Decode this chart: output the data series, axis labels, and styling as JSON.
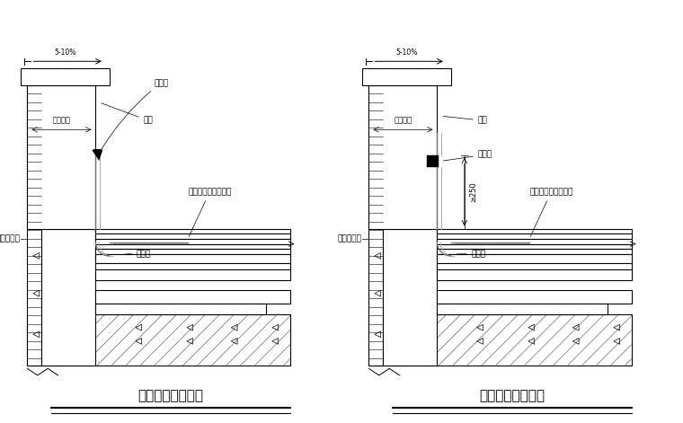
{
  "bg_color": "#ffffff",
  "line_color": "#000000",
  "title1": "女儿墙泛水（一）",
  "title2": "女儿墙泛水（二）",
  "label_slope": "5-10%",
  "label_sealant1": "密封膏",
  "label_sealant2": "密封膏",
  "label_flashing1": "鹰嘴",
  "label_flashing2": "鹰嘴",
  "label_wall_thick1": "女儿墙厚",
  "label_wall_thick2": "女儿墙厚",
  "label_outer_wall1": "外墙饰面砖",
  "label_outer_wall2": "外墙饰面砖",
  "label_roof_design1": "屋面构造接工程设计",
  "label_roof_design2": "屋面构造接工程设计",
  "label_add_layer1": "附加层",
  "label_add_layer2": "附加层",
  "label_250": "≥250",
  "font_size_title": 11,
  "font_size_label": 6.5
}
